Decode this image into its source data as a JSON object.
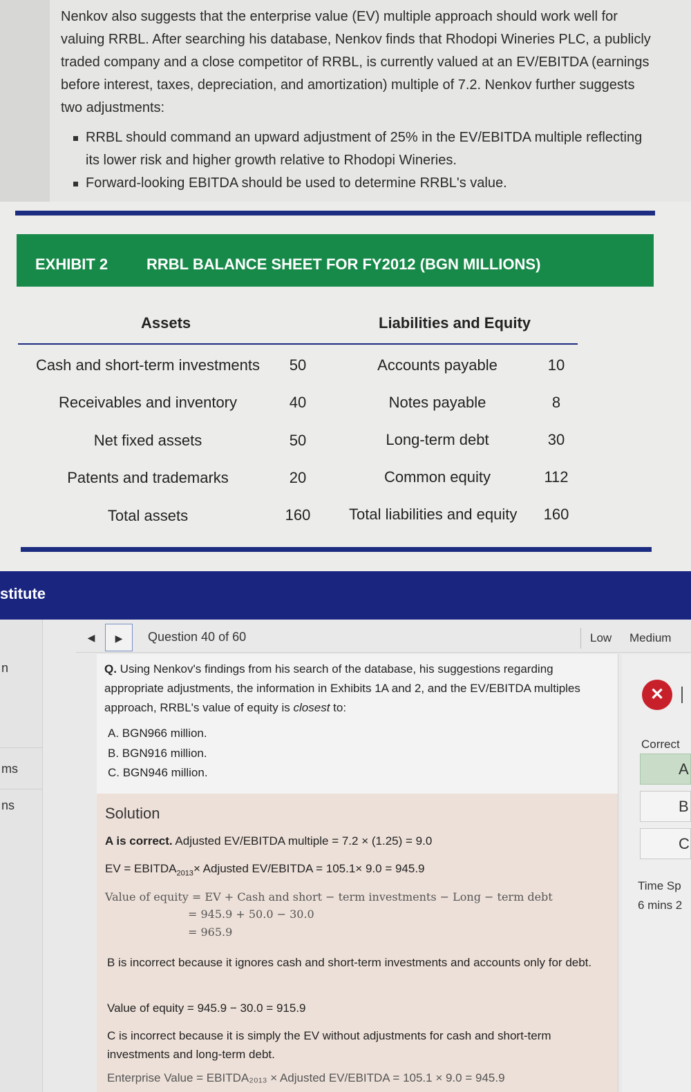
{
  "passage": {
    "paragraph": "Nenkov also suggests that the enterprise value (EV) multiple approach should work well for valuing RRBL. After searching his database, Nenkov finds that Rhodopi Wineries PLC, a publicly traded company and a close competitor of RRBL, is currently valued at an EV/EBITDA (earnings before interest, taxes, depreciation, and amortization) multiple of 7.2. Nenkov further suggests two adjustments:",
    "bullets": [
      "RRBL should command an upward adjustment of 25% in the EV/EBITDA multiple reflecting its lower risk and higher growth relative to Rhodopi Wineries.",
      "Forward-looking EBITDA should be used to determine RRBL's value."
    ]
  },
  "exhibit": {
    "number": "EXHIBIT 2",
    "title": "RRBL BALANCE SHEET FOR FY2012 (BGN MILLIONS)",
    "assets_header": "Assets",
    "liabilities_header": "Liabilities and Equity",
    "rows": [
      {
        "asset": "Cash and short-term investments",
        "asset_value": "50",
        "liability": "Accounts payable",
        "liability_value": "10"
      },
      {
        "asset": "Receivables and inventory",
        "asset_value": "40",
        "liability": "Notes payable",
        "liability_value": "8"
      },
      {
        "asset": "Net fixed assets",
        "asset_value": "50",
        "liability": "Long-term debt",
        "liability_value": "30"
      },
      {
        "asset": "Patents and trademarks",
        "asset_value": "20",
        "liability": "Common equity",
        "liability_value": "112"
      },
      {
        "asset": "Total assets",
        "asset_value": "160",
        "liability": "Total liabilities and equity",
        "liability_value": "160"
      }
    ]
  },
  "institute_bar": {
    "text": "stitute"
  },
  "sidebar": {
    "items": [
      "n",
      "ms",
      "ns"
    ]
  },
  "toolbar": {
    "prev_icon": "◀",
    "next_icon": "▶",
    "question_counter": "Question 40 of 60",
    "difficulty_low": "Low",
    "difficulty_medium": "Medium"
  },
  "question": {
    "prefix": "Q.",
    "text_before_em": " Using Nenkov's findings from his search of the database, his suggestions regarding appropriate adjustments, the information in Exhibits 1A and 2, and the EV/EBITDA multiples approach, RRBL's value of equity is ",
    "em": "closest",
    "text_after_em": " to:",
    "options": [
      "A. BGN966 million.",
      "B. BGN916 million.",
      "C. BGN946 million."
    ]
  },
  "solution": {
    "title": "Solution",
    "a_correct_bold": "A is correct.",
    "a_correct_rest": " Adjusted EV/EBITDA multiple = 7.2 × (1.25) = 9.0",
    "ev_prefix": "EV = EBITDA",
    "ev_sub": "2013",
    "ev_rest": "× Adjusted EV/EBITDA = 105.1× 9.0 = 945.9",
    "eq_line1": "Value of equity = EV + Cash and short − term investments − Long − term debt",
    "eq_line2": "= 945.9 + 50.0 − 30.0",
    "eq_line3": "= 965.9",
    "b_incorrect": "B is incorrect because it ignores cash and short-term investments and accounts only for debt.",
    "b_value": "Value of equity = 945.9 − 30.0 = 915.9",
    "c_incorrect": "C is incorrect because it is simply the EV without adjustments for cash and short-term investments and long-term debt.",
    "c_partial": "Enterprise Value = EBITDA₂₀₁₃ × Adjusted EV/EBITDA = 105.1 × 9.0 = 945.9"
  },
  "right_panel": {
    "result_icon": "✕",
    "result_text": "I",
    "correct_label": "Correct",
    "answers": [
      "A",
      "B",
      "C"
    ],
    "time_label": "Time Sp",
    "time_value": "6 mins 2"
  }
}
